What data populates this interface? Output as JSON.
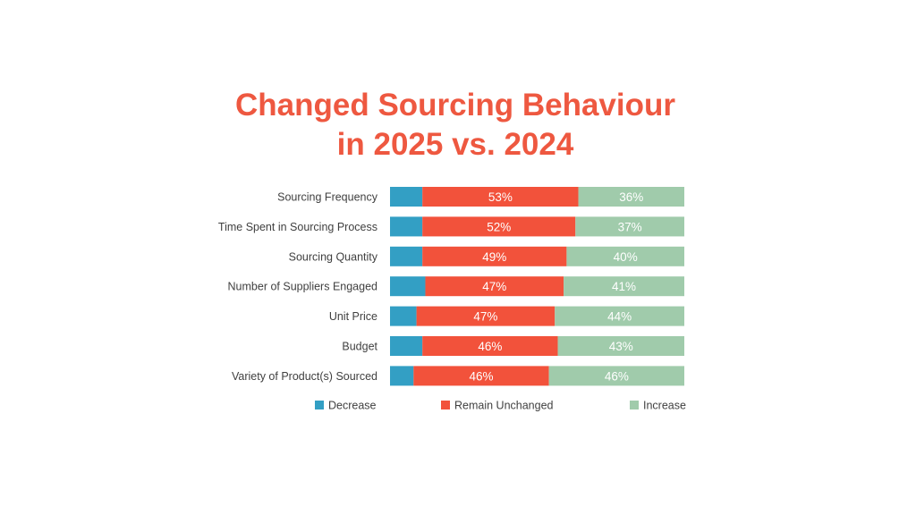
{
  "chart_data": {
    "type": "bar",
    "orientation": "horizontal",
    "stacked": true,
    "percent_stacked": true,
    "title": "Changed Sourcing Behaviour in 2025 vs. 2024",
    "title_lines": [
      "Changed Sourcing Behaviour",
      "in 2025 vs. 2024"
    ],
    "categories": [
      "Sourcing Frequency",
      "Time Spent in Sourcing Process",
      "Sourcing Quantity",
      "Number of Suppliers Engaged",
      "Unit Price",
      "Budget",
      "Variety of Product(s) Sourced"
    ],
    "series": [
      {
        "name": "Decrease",
        "color": "#339fc4",
        "values": [
          11,
          11,
          11,
          12,
          9,
          11,
          8
        ],
        "show_labels": false
      },
      {
        "name": "Remain Unchanged",
        "color": "#f2523b",
        "values": [
          53,
          52,
          49,
          47,
          47,
          46,
          46
        ],
        "show_labels": true
      },
      {
        "name": "Increase",
        "color": "#a0cbab",
        "values": [
          36,
          37,
          40,
          41,
          44,
          43,
          46
        ],
        "show_labels": true
      }
    ],
    "value_suffix": "%",
    "xlim": [
      0,
      100
    ],
    "grid": false,
    "legend_position": "bottom"
  },
  "colors": {
    "title": "#ee5840",
    "background": "#ffffff",
    "label_text": "#404040"
  }
}
